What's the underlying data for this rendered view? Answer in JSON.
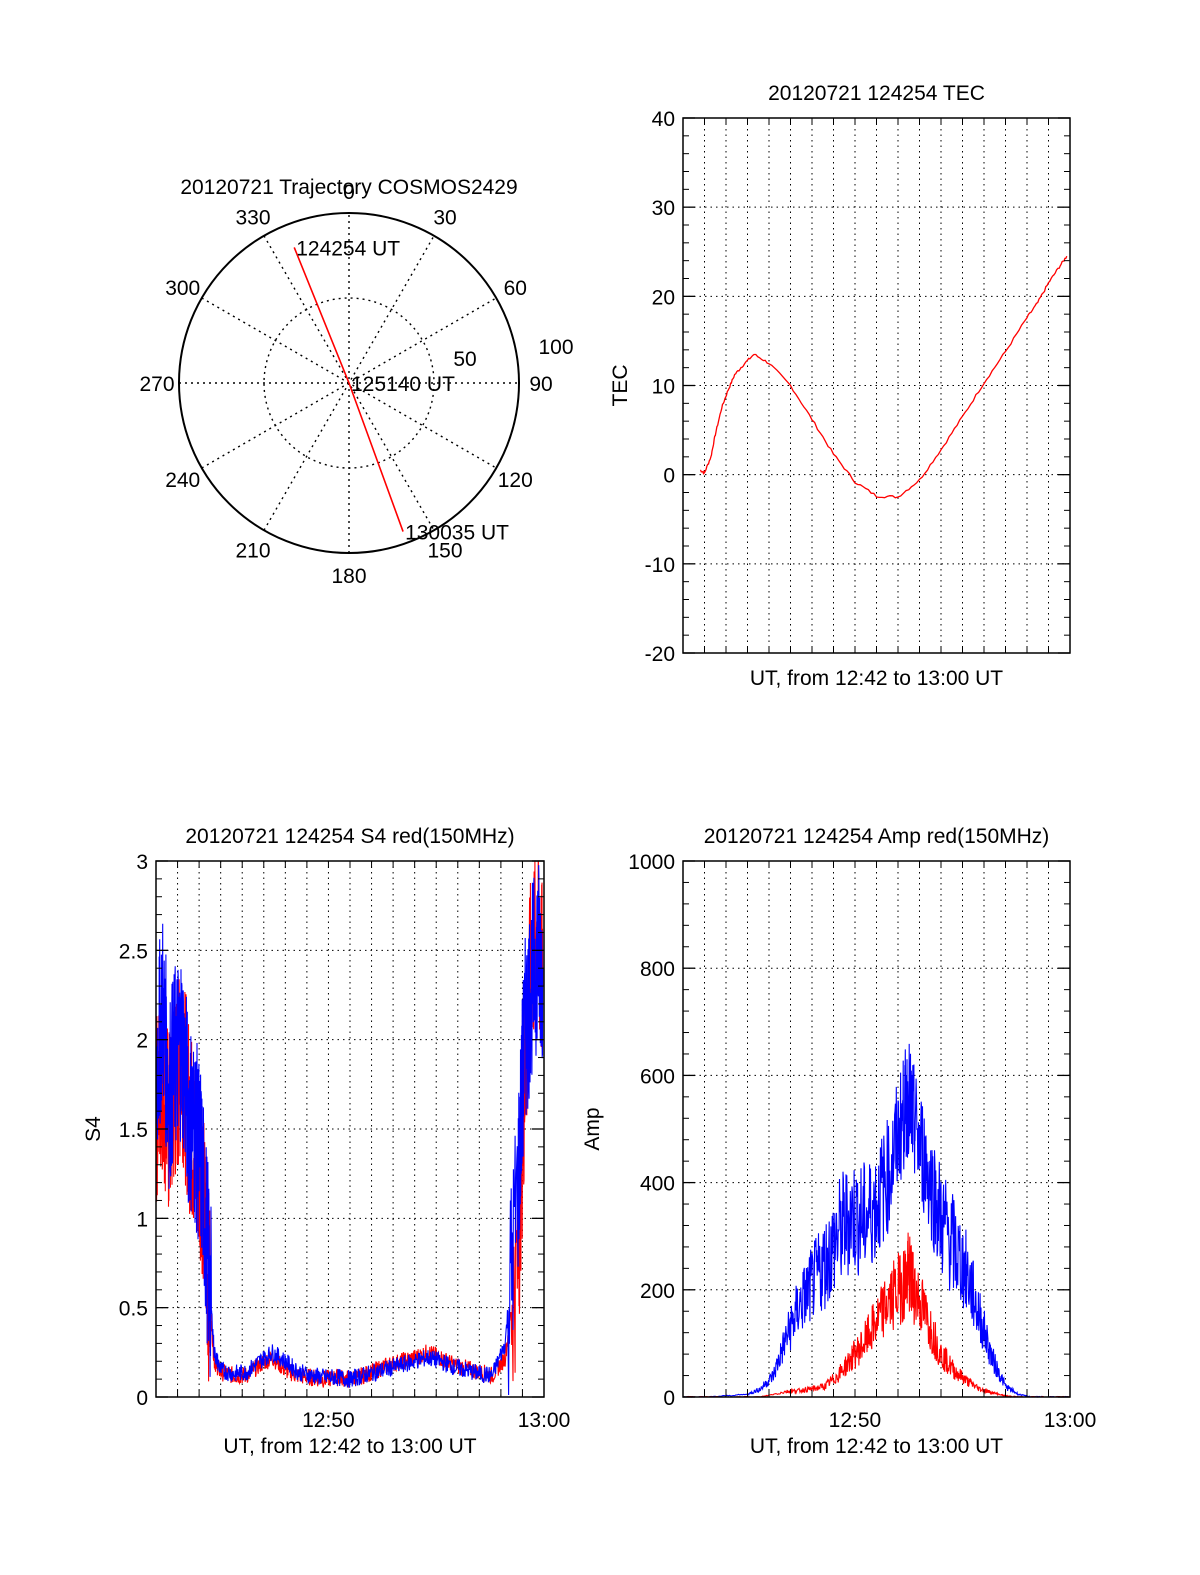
{
  "colors": {
    "red": "#ff0000",
    "blue": "#0000ff",
    "axis": "#000000",
    "grid": "#000000"
  },
  "chart_data": [
    {
      "type": "polar",
      "title": "20120721 Trajectory COSMOS2429",
      "grid": true,
      "azimuth_labels": [
        "0",
        "30",
        "60",
        "90",
        "120",
        "150",
        "180",
        "210",
        "240",
        "270",
        "300",
        "330"
      ],
      "azimuth_values": [
        0,
        30,
        60,
        90,
        120,
        150,
        180,
        210,
        240,
        270,
        300,
        330
      ],
      "ring_labels": [
        "50",
        "100"
      ],
      "ring_values": [
        50,
        100
      ],
      "series": [
        {
          "color": "red",
          "points": [
            {
              "azimuth": 338,
              "radius": 86,
              "label": "124254 UT"
            },
            {
              "azimuth": 0,
              "radius": 0,
              "label": "125140 UT"
            },
            {
              "azimuth": 160,
              "radius": 93,
              "label": "130035 UT"
            }
          ]
        }
      ]
    },
    {
      "type": "line",
      "title": "20120721 124254 TEC",
      "xlabel": "UT, from 12:42 to 13:00 UT",
      "ylabel": "TEC",
      "xlim": [
        0,
        18
      ],
      "ylim": [
        -20,
        40
      ],
      "yticks": [
        "-20",
        "-10",
        "0",
        "10",
        "20",
        "30",
        "40"
      ],
      "yticks_values": [
        -20,
        -10,
        0,
        10,
        20,
        30,
        40
      ],
      "grid": true,
      "series": [
        {
          "color": "red",
          "x": [
            0.8,
            1.0,
            1.3,
            1.5,
            1.8,
            2.1,
            2.4,
            2.8,
            3.3,
            4.0,
            5.0,
            6.0,
            7.0,
            8.0,
            9.0,
            10.0,
            11.0,
            12.0,
            13.0,
            14.0,
            15.0,
            16.0,
            16.5,
            17.0,
            17.5,
            17.85
          ],
          "y": [
            0.5,
            0.2,
            2.0,
            4.5,
            7.5,
            9.5,
            11.2,
            12.3,
            13.5,
            12.5,
            10.0,
            6.2,
            2.3,
            -0.8,
            -2.4,
            -2.5,
            -0.6,
            2.8,
            6.5,
            10.3,
            13.8,
            17.6,
            19.3,
            21.5,
            23.3,
            24.5
          ]
        }
      ]
    },
    {
      "type": "line",
      "title": "20120721 124254 S4 red(150MHz)",
      "xlabel": "UT, from 12:42 to 13:00 UT",
      "ylabel": "S4",
      "xlim": [
        12.7,
        13.0
      ],
      "ylim": [
        0,
        3
      ],
      "xticks": [
        "12:50",
        "13:00"
      ],
      "xticks_values": [
        12.8333,
        13.0
      ],
      "yticks": [
        "0",
        "0.5",
        "1",
        "1.5",
        "2",
        "2.5",
        "3"
      ],
      "yticks_values": [
        0,
        0.5,
        1,
        1.5,
        2,
        2.5,
        3
      ],
      "grid": true,
      "series": [
        {
          "color": "red",
          "x": [
            12.7,
            12.705,
            12.71,
            12.715,
            12.72,
            12.725,
            12.73,
            12.735,
            12.74,
            12.745,
            12.75,
            12.76,
            12.77,
            12.78,
            12.79,
            12.8,
            12.81,
            12.82,
            12.83,
            12.84,
            12.85,
            12.86,
            12.87,
            12.88,
            12.89,
            12.9,
            12.91,
            12.92,
            12.93,
            12.94,
            12.95,
            12.96,
            12.97,
            12.98,
            12.985,
            12.99,
            12.995,
            12.999
          ],
          "y": [
            1.6,
            1.8,
            1.5,
            1.7,
            1.9,
            1.6,
            1.4,
            1.3,
            0.7,
            0.2,
            0.14,
            0.12,
            0.12,
            0.18,
            0.22,
            0.15,
            0.12,
            0.11,
            0.1,
            0.11,
            0.1,
            0.12,
            0.15,
            0.18,
            0.2,
            0.22,
            0.25,
            0.22,
            0.18,
            0.16,
            0.14,
            0.12,
            0.22,
            0.8,
            1.8,
            2.4,
            2.6,
            2.3
          ]
        },
        {
          "color": "blue",
          "x": [
            12.7,
            12.705,
            12.71,
            12.715,
            12.72,
            12.725,
            12.73,
            12.735,
            12.74,
            12.745,
            12.75,
            12.76,
            12.77,
            12.78,
            12.79,
            12.8,
            12.81,
            12.82,
            12.83,
            12.84,
            12.85,
            12.86,
            12.87,
            12.88,
            12.89,
            12.9,
            12.91,
            12.92,
            12.93,
            12.94,
            12.95,
            12.96,
            12.97,
            12.98,
            12.985,
            12.99,
            12.995,
            12.999
          ],
          "y": [
            1.8,
            2.2,
            1.7,
            1.9,
            2.0,
            1.6,
            1.5,
            1.3,
            0.8,
            0.25,
            0.15,
            0.13,
            0.14,
            0.2,
            0.25,
            0.2,
            0.14,
            0.12,
            0.11,
            0.11,
            0.1,
            0.12,
            0.14,
            0.16,
            0.18,
            0.2,
            0.22,
            0.2,
            0.17,
            0.15,
            0.13,
            0.12,
            0.3,
            1.2,
            2.0,
            2.3,
            2.5,
            2.4
          ]
        }
      ]
    },
    {
      "type": "line",
      "title": "20120721 124254 Amp red(150MHz)",
      "xlabel": "UT, from 12:42 to 13:00 UT",
      "ylabel": "Amp",
      "xlim": [
        12.7,
        13.0
      ],
      "ylim": [
        0,
        1000
      ],
      "xticks": [
        "12:50",
        "13:00"
      ],
      "xticks_values": [
        12.8333,
        13.0
      ],
      "yticks": [
        "0",
        "200",
        "400",
        "600",
        "800",
        "1000"
      ],
      "yticks_values": [
        0,
        200,
        400,
        600,
        800,
        1000
      ],
      "grid": true,
      "series": [
        {
          "color": "blue",
          "x": [
            12.7,
            12.72,
            12.75,
            12.76,
            12.77,
            12.78,
            12.79,
            12.8,
            12.81,
            12.82,
            12.83,
            12.84,
            12.85,
            12.86,
            12.87,
            12.875,
            12.88,
            12.89,
            12.9,
            12.91,
            12.92,
            12.93,
            12.94,
            12.95,
            12.96,
            12.97,
            12.98,
            13.0
          ],
          "y": [
            0,
            0,
            5,
            15,
            40,
            110,
            170,
            210,
            250,
            300,
            340,
            330,
            360,
            420,
            520,
            560,
            500,
            420,
            330,
            280,
            230,
            150,
            70,
            20,
            5,
            0,
            0,
            0
          ]
        },
        {
          "color": "red",
          "x": [
            12.7,
            12.76,
            12.78,
            12.79,
            12.8,
            12.81,
            12.82,
            12.83,
            12.84,
            12.85,
            12.86,
            12.87,
            12.875,
            12.88,
            12.89,
            12.9,
            12.91,
            12.92,
            12.93,
            12.94,
            12.95,
            12.96,
            13.0
          ],
          "y": [
            0,
            0,
            10,
            12,
            15,
            20,
            40,
            70,
            100,
            140,
            180,
            210,
            230,
            200,
            140,
            80,
            50,
            30,
            15,
            8,
            2,
            0,
            0
          ]
        }
      ]
    }
  ]
}
